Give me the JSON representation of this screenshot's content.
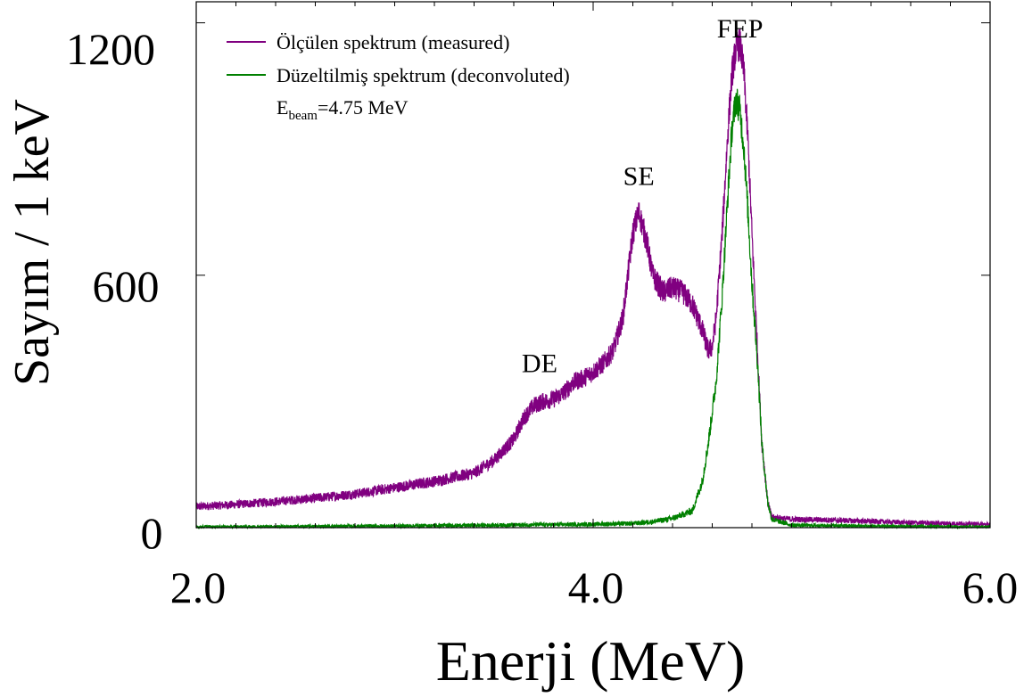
{
  "chart_data": {
    "type": "line",
    "xlabel": "Enerji (MeV)",
    "ylabel": "Sayım / 1 keV",
    "xlim": [
      2.0,
      6.0
    ],
    "ylim": [
      0,
      1250
    ],
    "x_ticks": [
      "2.0",
      "4.0",
      "6.0"
    ],
    "y_ticks": [
      "0",
      "600",
      "1200"
    ],
    "x_tick_values": [
      2.0,
      4.0,
      6.0
    ],
    "y_tick_values": [
      0,
      600,
      1200
    ],
    "grid": false,
    "legend_placement": "top-left",
    "annotation": {
      "beam_prefix": "E",
      "beam_subscript": "beam",
      "beam_value": "=4.75 MeV"
    },
    "peak_labels": [
      {
        "text": "DE",
        "x": 3.73,
        "y": 370
      },
      {
        "text": "SE",
        "x": 4.23,
        "y": 815
      },
      {
        "text": "FEP",
        "x": 4.74,
        "y": 1165
      }
    ],
    "series": [
      {
        "name": "Ölçülen spektrum (measured)",
        "color": "#800080",
        "x": [
          2.0,
          2.2,
          2.4,
          2.6,
          2.8,
          3.0,
          3.2,
          3.4,
          3.5,
          3.6,
          3.65,
          3.7,
          3.75,
          3.8,
          3.85,
          3.9,
          3.95,
          4.0,
          4.05,
          4.1,
          4.15,
          4.2,
          4.23,
          4.27,
          4.3,
          4.35,
          4.4,
          4.45,
          4.5,
          4.55,
          4.58,
          4.6,
          4.62,
          4.65,
          4.68,
          4.7,
          4.72,
          4.74,
          4.76,
          4.78,
          4.8,
          4.83,
          4.85,
          4.88,
          4.9,
          5.0,
          5.2,
          5.4,
          5.6,
          5.8,
          6.0
        ],
        "values": [
          50,
          55,
          62,
          70,
          80,
          95,
          110,
          130,
          160,
          210,
          260,
          290,
          300,
          305,
          320,
          345,
          355,
          370,
          390,
          420,
          500,
          700,
          750,
          680,
          600,
          560,
          570,
          560,
          530,
          470,
          420,
          430,
          500,
          700,
          950,
          1080,
          1140,
          1150,
          1080,
          920,
          700,
          400,
          200,
          60,
          25,
          20,
          18,
          15,
          12,
          10,
          8
        ]
      },
      {
        "name": "Düzeltilmiş spektrum (deconvoluted)",
        "color": "#008000",
        "x": [
          2.0,
          2.5,
          3.0,
          3.5,
          4.0,
          4.2,
          4.3,
          4.4,
          4.5,
          4.55,
          4.58,
          4.62,
          4.65,
          4.68,
          4.7,
          4.72,
          4.74,
          4.76,
          4.78,
          4.8,
          4.83,
          4.85,
          4.88,
          4.9,
          5.0,
          5.5,
          6.0
        ],
        "values": [
          2,
          3,
          4,
          6,
          8,
          10,
          14,
          22,
          40,
          110,
          200,
          350,
          550,
          800,
          950,
          1020,
          990,
          900,
          750,
          580,
          380,
          200,
          60,
          20,
          6,
          3,
          2
        ]
      }
    ]
  }
}
